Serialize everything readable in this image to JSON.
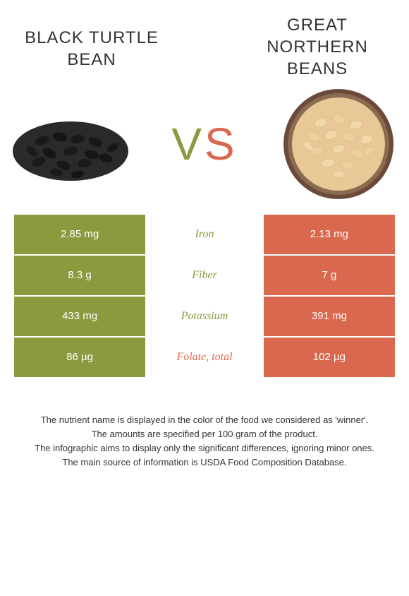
{
  "foods": {
    "left": {
      "title": "Black turtle bean"
    },
    "right": {
      "title": "Great Northern Beans"
    }
  },
  "vs": {
    "v": "V",
    "s": "S"
  },
  "colors": {
    "left": "#8a9a3f",
    "right": "#d9684f",
    "text": "#333333"
  },
  "nutrients": [
    {
      "label": "Iron",
      "left": "2.85 mg",
      "right": "2.13 mg",
      "winner": "left"
    },
    {
      "label": "Fiber",
      "left": "8.3 g",
      "right": "7 g",
      "winner": "left"
    },
    {
      "label": "Potassium",
      "left": "433 mg",
      "right": "391 mg",
      "winner": "left"
    },
    {
      "label": "Folate, total",
      "left": "86 µg",
      "right": "102 µg",
      "winner": "right"
    }
  ],
  "footnotes": [
    "The nutrient name is displayed in the color of the food we considered as 'winner'.",
    "The amounts are specified per 100 gram of the product.",
    "The infographic aims to display only the significant differences, ignoring minor ones.",
    "The main source of information is USDA Food Composition Database."
  ]
}
